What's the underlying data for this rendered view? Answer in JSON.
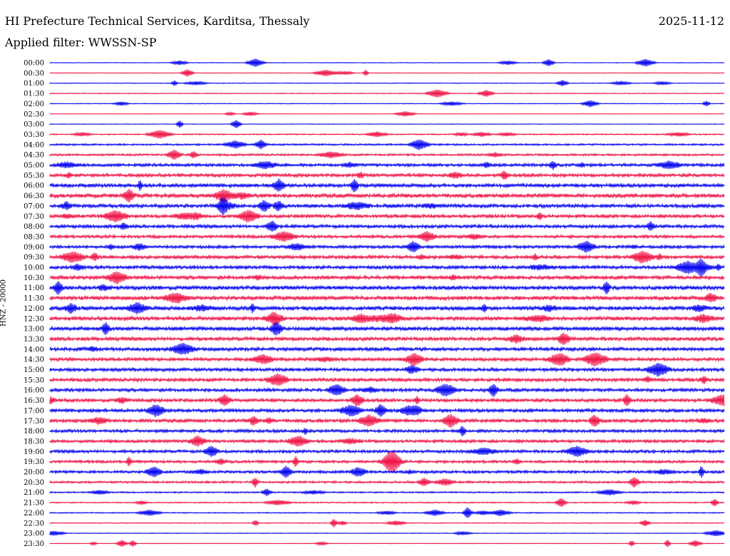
{
  "header": {
    "title": "HI Prefecture Technical Services, Karditsa, Thessaly",
    "date": "2025-11-12",
    "filter_label": "Applied filter:",
    "filter_value": "WWSSN-SP"
  },
  "axis": {
    "channel_label": "HNZ - 20000"
  },
  "colors": {
    "even_trace": "#0000ee",
    "odd_trace": "#ee1144"
  },
  "chart_data": {
    "type": "line",
    "title": "HI Prefecture Technical Services, Karditsa, Thessaly",
    "ylabel": "HNZ - 20000",
    "xlabel": "",
    "row_labels": [
      "00:00",
      "00:30",
      "01:00",
      "01:30",
      "02:00",
      "02:30",
      "03:00",
      "03:30",
      "04:00",
      "04:30",
      "05:00",
      "05:30",
      "06:00",
      "06:30",
      "07:00",
      "07:30",
      "08:00",
      "08:30",
      "09:00",
      "09:30",
      "10:00",
      "10:30",
      "11:00",
      "11:30",
      "12:00",
      "12:30",
      "13:00",
      "13:30",
      "14:00",
      "14:30",
      "15:00",
      "15:30",
      "16:00",
      "16:30",
      "17:00",
      "17:30",
      "18:00",
      "18:30",
      "19:00",
      "19:30",
      "20:00",
      "20:30",
      "21:00",
      "21:30",
      "22:00",
      "22:30",
      "23:00",
      "23:30"
    ],
    "relative_noise_level": [
      0.1,
      0.1,
      0.12,
      0.15,
      0.12,
      0.08,
      0.1,
      0.2,
      0.3,
      0.35,
      0.5,
      0.55,
      0.6,
      0.65,
      0.6,
      0.55,
      0.55,
      0.5,
      0.5,
      0.55,
      0.55,
      0.6,
      0.65,
      0.65,
      0.65,
      0.65,
      0.65,
      0.6,
      0.6,
      0.55,
      0.55,
      0.55,
      0.55,
      0.55,
      0.55,
      0.55,
      0.5,
      0.5,
      0.5,
      0.45,
      0.45,
      0.35,
      0.25,
      0.2,
      0.18,
      0.15,
      0.12,
      0.1
    ],
    "grid": false,
    "legend": "none"
  }
}
